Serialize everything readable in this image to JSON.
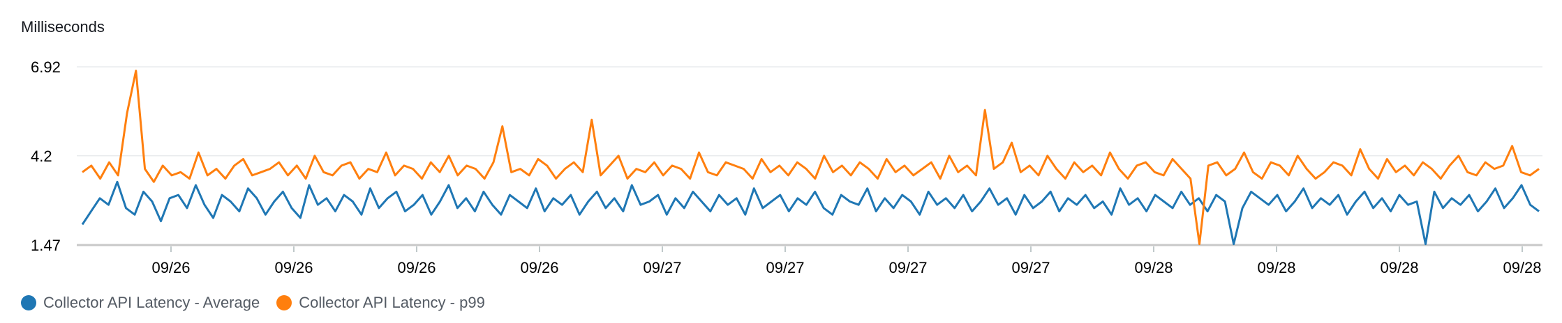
{
  "chart_data": {
    "type": "line",
    "title": "Milliseconds",
    "ylim": [
      1.47,
      6.92
    ],
    "y_ticks": [
      "6.92",
      "4.2",
      "1.47"
    ],
    "x_ticks": [
      "09/26",
      "09/26",
      "09/26",
      "09/26",
      "09/27",
      "09/27",
      "09/27",
      "09/27",
      "09/28",
      "09/28",
      "09/28",
      "09/28"
    ],
    "grid": true,
    "legend_position": "bottom-left",
    "series": [
      {
        "name": "Collector API Latency - Average",
        "color": "#1f77b4",
        "values": [
          2.1,
          2.5,
          2.9,
          2.7,
          3.4,
          2.6,
          2.4,
          3.1,
          2.8,
          2.2,
          2.9,
          3.0,
          2.6,
          3.3,
          2.7,
          2.3,
          3.0,
          2.8,
          2.5,
          3.2,
          2.9,
          2.4,
          2.8,
          3.1,
          2.6,
          2.3,
          3.3,
          2.7,
          2.9,
          2.5,
          3.0,
          2.8,
          2.4,
          3.2,
          2.6,
          2.9,
          3.1,
          2.5,
          2.7,
          3.0,
          2.4,
          2.8,
          3.3,
          2.6,
          2.9,
          2.5,
          3.1,
          2.7,
          2.4,
          3.0,
          2.8,
          2.6,
          3.2,
          2.5,
          2.9,
          2.7,
          3.0,
          2.4,
          2.8,
          3.1,
          2.6,
          2.9,
          2.5,
          3.3,
          2.7,
          2.8,
          3.0,
          2.4,
          2.9,
          2.6,
          3.1,
          2.8,
          2.5,
          3.0,
          2.7,
          2.9,
          2.4,
          3.2,
          2.6,
          2.8,
          3.0,
          2.5,
          2.9,
          2.7,
          3.1,
          2.6,
          2.4,
          3.0,
          2.8,
          2.7,
          3.2,
          2.5,
          2.9,
          2.6,
          3.0,
          2.8,
          2.4,
          3.1,
          2.7,
          2.9,
          2.6,
          3.0,
          2.5,
          2.8,
          3.2,
          2.7,
          2.9,
          2.4,
          3.0,
          2.6,
          2.8,
          3.1,
          2.5,
          2.9,
          2.7,
          3.0,
          2.6,
          2.8,
          2.4,
          3.2,
          2.7,
          2.9,
          2.5,
          3.0,
          2.8,
          2.6,
          3.1,
          2.7,
          2.9,
          2.5,
          3.0,
          2.8,
          1.5,
          2.6,
          3.1,
          2.9,
          2.7,
          3.0,
          2.5,
          2.8,
          3.2,
          2.6,
          2.9,
          2.7,
          3.0,
          2.4,
          2.8,
          3.1,
          2.6,
          2.9,
          2.5,
          3.0,
          2.7,
          2.8,
          1.5,
          3.1,
          2.6,
          2.9,
          2.7,
          3.0,
          2.5,
          2.8,
          3.2,
          2.6,
          2.9,
          3.3,
          2.7,
          2.5
        ]
      },
      {
        "name": "Collector API Latency - p99",
        "color": "#ff7f0e",
        "values": [
          3.7,
          3.9,
          3.5,
          4.0,
          3.6,
          5.5,
          6.8,
          3.8,
          3.4,
          3.9,
          3.6,
          3.7,
          3.5,
          4.3,
          3.6,
          3.8,
          3.5,
          3.9,
          4.1,
          3.6,
          3.7,
          3.8,
          4.0,
          3.6,
          3.9,
          3.5,
          4.2,
          3.7,
          3.6,
          3.9,
          4.0,
          3.5,
          3.8,
          3.7,
          4.3,
          3.6,
          3.9,
          3.8,
          3.5,
          4.0,
          3.7,
          4.2,
          3.6,
          3.9,
          3.8,
          3.5,
          4.0,
          5.1,
          3.7,
          3.8,
          3.6,
          4.1,
          3.9,
          3.5,
          3.8,
          4.0,
          3.7,
          5.3,
          3.6,
          3.9,
          4.2,
          3.5,
          3.8,
          3.7,
          4.0,
          3.6,
          3.9,
          3.8,
          3.5,
          4.3,
          3.7,
          3.6,
          4.0,
          3.9,
          3.8,
          3.5,
          4.1,
          3.7,
          3.9,
          3.6,
          4.0,
          3.8,
          3.5,
          4.2,
          3.7,
          3.9,
          3.6,
          4.0,
          3.8,
          3.5,
          4.1,
          3.7,
          3.9,
          3.6,
          3.8,
          4.0,
          3.5,
          4.2,
          3.7,
          3.9,
          3.6,
          5.6,
          3.8,
          4.0,
          4.6,
          3.7,
          3.9,
          3.6,
          4.2,
          3.8,
          3.5,
          4.0,
          3.7,
          3.9,
          3.6,
          4.3,
          3.8,
          3.5,
          3.9,
          4.0,
          3.7,
          3.6,
          4.1,
          3.8,
          3.5,
          1.5,
          3.9,
          4.0,
          3.6,
          3.8,
          4.3,
          3.7,
          3.5,
          4.0,
          3.9,
          3.6,
          4.2,
          3.8,
          3.5,
          3.7,
          4.0,
          3.9,
          3.6,
          4.4,
          3.8,
          3.5,
          4.1,
          3.7,
          3.9,
          3.6,
          4.0,
          3.8,
          3.5,
          3.9,
          4.2,
          3.7,
          3.6,
          4.0,
          3.8,
          3.9,
          4.5,
          3.7,
          3.6,
          3.8
        ]
      }
    ]
  },
  "legend": {
    "items": [
      {
        "label": "Collector API Latency - Average",
        "color": "#1f77b4"
      },
      {
        "label": "Collector API Latency - p99",
        "color": "#ff7f0e"
      }
    ]
  }
}
